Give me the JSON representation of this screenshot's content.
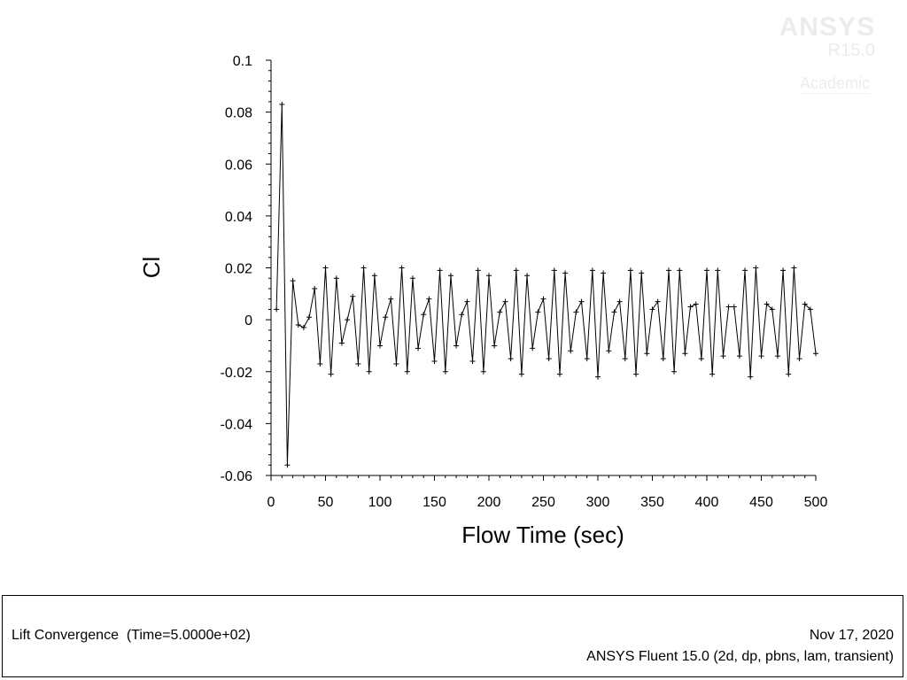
{
  "watermark": {
    "brand": "ANSYS",
    "version": "R15.0",
    "edition": "Academic"
  },
  "footer": {
    "left": "Lift Convergence  (Time=5.0000e+02)",
    "date": "Nov 17, 2020",
    "solver": "ANSYS Fluent 15.0 (2d, dp, pbns, lam, transient)"
  },
  "chart_data": {
    "type": "line",
    "title": "",
    "xlabel": "Flow Time (sec)",
    "ylabel": "Cl",
    "xlim": [
      0,
      500
    ],
    "ylim": [
      -0.06,
      0.1
    ],
    "xticks": [
      0,
      50,
      100,
      150,
      200,
      250,
      300,
      350,
      400,
      450,
      500
    ],
    "yticks": [
      -0.06,
      -0.04,
      -0.02,
      0,
      0.02,
      0.04,
      0.06,
      0.08,
      0.1
    ],
    "ytick_labels": [
      "-0.06",
      "-0.04",
      "-0.02",
      "0",
      "0.02",
      "0.04",
      "0.06",
      "0.08",
      "0.1"
    ],
    "grid": false,
    "marker": "+",
    "series": [
      {
        "name": "",
        "x": [
          5,
          10,
          15,
          20,
          25,
          30,
          35,
          40,
          45,
          50,
          55,
          60,
          65,
          70,
          75,
          80,
          85,
          90,
          95,
          100,
          105,
          110,
          115,
          120,
          125,
          130,
          135,
          140,
          145,
          150,
          155,
          160,
          165,
          170,
          175,
          180,
          185,
          190,
          195,
          200,
          205,
          210,
          215,
          220,
          225,
          230,
          235,
          240,
          245,
          250,
          255,
          260,
          265,
          270,
          275,
          280,
          285,
          290,
          295,
          300,
          305,
          310,
          315,
          320,
          325,
          330,
          335,
          340,
          345,
          350,
          355,
          360,
          365,
          370,
          375,
          380,
          385,
          390,
          395,
          400,
          405,
          410,
          415,
          420,
          425,
          430,
          435,
          440,
          445,
          450,
          455,
          460,
          465,
          470,
          475,
          480,
          485,
          490,
          495,
          500
        ],
        "y": [
          0.004,
          0.083,
          -0.056,
          0.015,
          -0.002,
          -0.003,
          0.001,
          0.012,
          -0.017,
          0.02,
          -0.021,
          0.016,
          -0.009,
          0.0,
          0.009,
          -0.017,
          0.02,
          -0.02,
          0.017,
          -0.01,
          0.001,
          0.008,
          -0.017,
          0.02,
          -0.02,
          0.016,
          -0.011,
          0.002,
          0.008,
          -0.016,
          0.019,
          -0.02,
          0.017,
          -0.01,
          0.002,
          0.007,
          -0.016,
          0.019,
          -0.02,
          0.017,
          -0.01,
          0.003,
          0.007,
          -0.015,
          0.019,
          -0.021,
          0.017,
          -0.011,
          0.003,
          0.008,
          -0.015,
          0.019,
          -0.021,
          0.018,
          -0.012,
          0.003,
          0.007,
          -0.015,
          0.019,
          -0.022,
          0.018,
          -0.012,
          0.003,
          0.007,
          -0.015,
          0.019,
          -0.021,
          0.018,
          -0.013,
          0.004,
          0.007,
          -0.015,
          0.019,
          -0.02,
          0.019,
          -0.013,
          0.005,
          0.006,
          -0.015,
          0.019,
          -0.021,
          0.019,
          -0.014,
          0.005,
          0.005,
          -0.014,
          0.019,
          -0.022,
          0.02,
          -0.014,
          0.006,
          0.004,
          -0.014,
          0.019,
          -0.021,
          0.02,
          -0.015,
          0.006,
          0.004,
          -0.013
        ]
      }
    ]
  }
}
